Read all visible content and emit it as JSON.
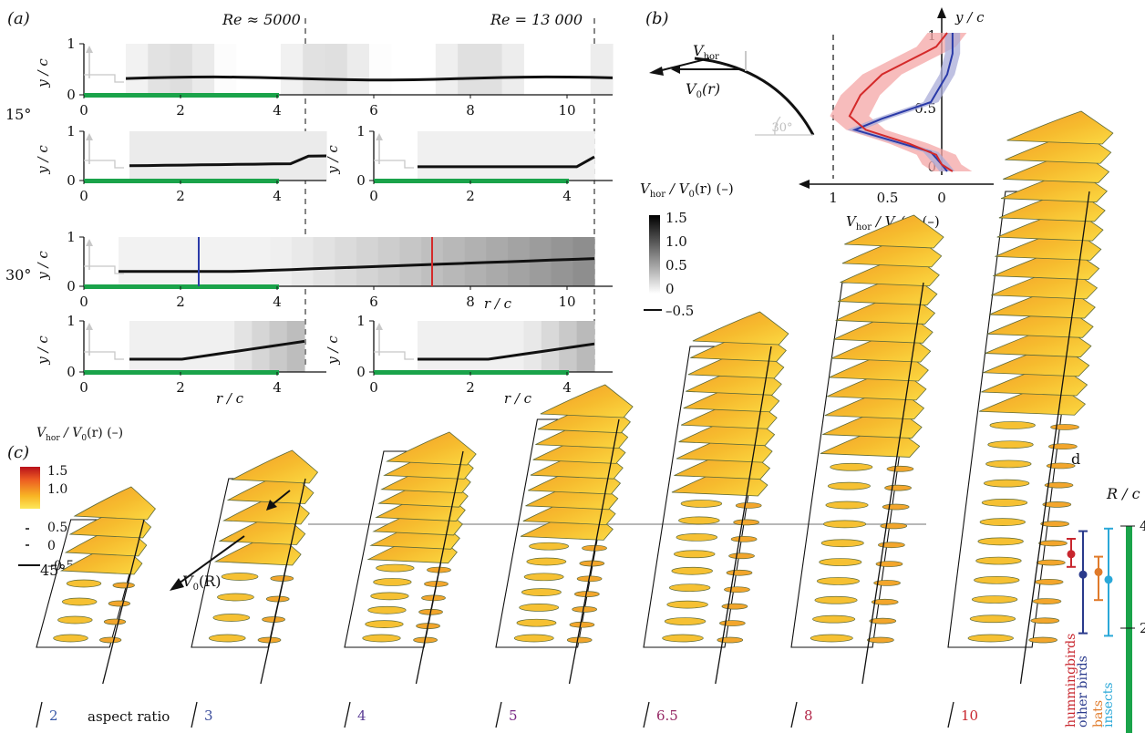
{
  "panel_a": {
    "label": "(a)",
    "re_low": "Re ≈ 5000",
    "re_high": "Re = 13 000",
    "angle_15": "15°",
    "angle_30": "30°",
    "ylabel": "y / c",
    "xlabel": "r / c",
    "yticks": [
      "0",
      "1"
    ],
    "xticks_long": [
      "0",
      "2",
      "4",
      "6",
      "8",
      "10"
    ],
    "xticks_short": [
      "0",
      "2",
      "4"
    ],
    "colorbar_title": "V",
    "colorbar_title_sub": "hor",
    "colorbar_title_mid": " / V",
    "colorbar_title_sub2": "0",
    "colorbar_title_tail": "(r) (–)",
    "colorbar_ticks": [
      "1.5",
      "1.0",
      "0.5",
      "0",
      "–0.5"
    ]
  },
  "panel_b": {
    "label": "(b)",
    "ylabel": "y / c",
    "yticks": [
      "1",
      "0.5",
      "0"
    ],
    "xticks": [
      "1",
      "0.5",
      "0"
    ],
    "xlabel": "V",
    "xlabel_sub": "hor",
    "xlabel_mid": " / V",
    "xlabel_sub2": "0",
    "xlabel_tail": "(r) (–)",
    "vhor": "V",
    "vhor_sub": "hor",
    "v0": "V",
    "v0_sub": "0",
    "v0_tail": "(r)",
    "angle": "30°"
  },
  "panel_c": {
    "label": "(c)",
    "angle": "45°",
    "colorbar_ticks": [
      "1.5",
      "1.0",
      "0.5",
      "0",
      "–0.5"
    ],
    "vhor": "V",
    "vhor_sub": "hor",
    "v0R": "V",
    "v0R_sub": "0",
    "v0R_tail": "(R)",
    "aspect_label": "aspect ratio",
    "aspect_ratios": [
      "2",
      "3",
      "4",
      "5",
      "6.5",
      "8",
      "10"
    ],
    "aspect_colors": [
      "#3a5aa8",
      "#3a4c9c",
      "#5a3c94",
      "#7a2a86",
      "#962a66",
      "#b3284a",
      "#c8262e"
    ]
  },
  "panel_d": {
    "label": "d",
    "axis_label": "R / c",
    "ticks": [
      "4",
      "2"
    ],
    "groups": [
      {
        "name": "hummingbirds",
        "color": "#c8262e",
        "mean": 3.45,
        "low": 3.2,
        "high": 3.75
      },
      {
        "name": "other birds",
        "color": "#2a3a8c",
        "mean": 3.05,
        "low": 1.9,
        "high": 3.9
      },
      {
        "name": "bats",
        "color": "#e07a2a",
        "mean": 3.1,
        "low": 2.55,
        "high": 3.4
      },
      {
        "name": "insects",
        "color": "#2aa8d8",
        "mean": 2.95,
        "low": 1.85,
        "high": 3.95
      }
    ]
  }
}
